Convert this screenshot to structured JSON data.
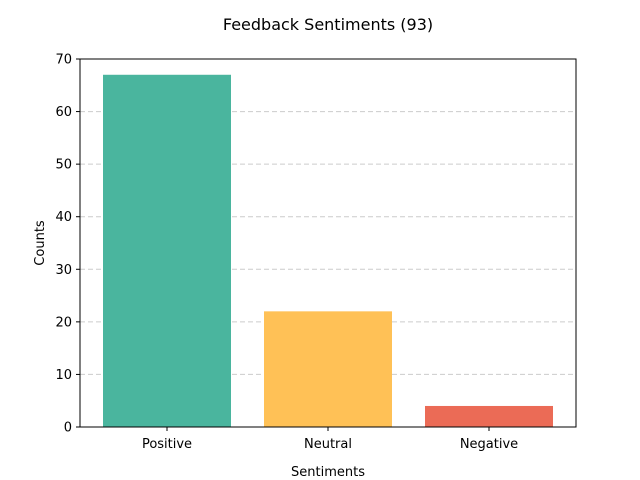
{
  "chart_data": {
    "type": "bar",
    "title": "Feedback Sentiments (93)",
    "xlabel": "Sentiments",
    "ylabel": "Counts",
    "categories": [
      "Positive",
      "Neutral",
      "Negative"
    ],
    "values": [
      67,
      22,
      4
    ],
    "colors": [
      "#4ab59e",
      "#ffc156",
      "#eb6b56"
    ],
    "ylim": [
      0,
      70
    ],
    "yticks": [
      0,
      10,
      20,
      30,
      40,
      50,
      60,
      70
    ],
    "grid": {
      "axis": "y",
      "style": "dashed",
      "color": "#cccccc"
    },
    "legend": "none"
  }
}
